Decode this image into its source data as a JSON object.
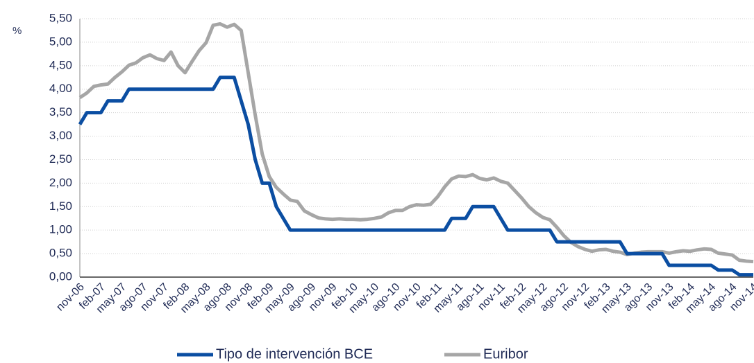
{
  "chart_data": {
    "type": "line",
    "ylabel": "%",
    "categories": [
      "nov-06",
      null,
      null,
      "feb-07",
      null,
      null,
      "may-07",
      null,
      null,
      "ago-07",
      null,
      null,
      "nov-07",
      null,
      null,
      "feb-08",
      null,
      null,
      "may-08",
      null,
      null,
      "ago-08",
      null,
      null,
      "nov-08",
      null,
      null,
      "feb-09",
      null,
      null,
      "may-09",
      null,
      null,
      "ago-09",
      null,
      null,
      "nov-09",
      null,
      null,
      "feb-10",
      null,
      null,
      "may-10",
      null,
      null,
      "ago-10",
      null,
      null,
      "nov-10",
      null,
      null,
      "feb-11",
      null,
      null,
      "may-11",
      null,
      null,
      "ago-11",
      null,
      null,
      "nov-11",
      null,
      null,
      "feb-12",
      null,
      null,
      "may-12",
      null,
      null,
      "ago-12",
      null,
      null,
      "nov-12",
      null,
      null,
      "feb-13",
      null,
      null,
      "may-13",
      null,
      null,
      "ago-13",
      null,
      null,
      "nov-13",
      null,
      null,
      "feb-14",
      null,
      null,
      "may-14",
      null,
      null,
      "ago-14",
      null,
      null,
      "nov-14"
    ],
    "series": [
      {
        "name": "Tipo de intervención BCE",
        "color": "#0b4ea2",
        "values": [
          3.25,
          3.5,
          3.5,
          3.5,
          3.75,
          3.75,
          3.75,
          4,
          4,
          4,
          4,
          4,
          4,
          4,
          4,
          4,
          4,
          4,
          4,
          4,
          4.25,
          4.25,
          4.25,
          3.75,
          3.25,
          2.5,
          2,
          2,
          1.5,
          1.25,
          1,
          1,
          1,
          1,
          1,
          1,
          1,
          1,
          1,
          1,
          1,
          1,
          1,
          1,
          1,
          1,
          1,
          1,
          1,
          1,
          1,
          1,
          1,
          1.25,
          1.25,
          1.25,
          1.5,
          1.5,
          1.5,
          1.5,
          1.25,
          1,
          1,
          1,
          1,
          1,
          1,
          1,
          0.75,
          0.75,
          0.75,
          0.75,
          0.75,
          0.75,
          0.75,
          0.75,
          0.75,
          0.75,
          0.5,
          0.5,
          0.5,
          0.5,
          0.5,
          0.5,
          0.25,
          0.25,
          0.25,
          0.25,
          0.25,
          0.25,
          0.25,
          0.15,
          0.15,
          0.15,
          0.05,
          0.05,
          0.05
        ]
      },
      {
        "name": "Euribor",
        "color": "#a6a6a6",
        "values": [
          3.82,
          3.92,
          4.06,
          4.09,
          4.11,
          4.25,
          4.37,
          4.51,
          4.56,
          4.67,
          4.73,
          4.65,
          4.61,
          4.79,
          4.5,
          4.35,
          4.59,
          4.82,
          4.99,
          5.36,
          5.39,
          5.32,
          5.38,
          5.25,
          4.35,
          3.45,
          2.62,
          2.14,
          1.91,
          1.77,
          1.64,
          1.61,
          1.41,
          1.33,
          1.26,
          1.24,
          1.23,
          1.24,
          1.23,
          1.23,
          1.22,
          1.23,
          1.25,
          1.28,
          1.37,
          1.42,
          1.42,
          1.5,
          1.54,
          1.53,
          1.55,
          1.71,
          1.92,
          2.09,
          2.15,
          2.14,
          2.18,
          2.1,
          2.07,
          2.11,
          2.04,
          2.0,
          1.84,
          1.68,
          1.5,
          1.37,
          1.27,
          1.22,
          1.06,
          0.88,
          0.74,
          0.65,
          0.59,
          0.55,
          0.58,
          0.59,
          0.55,
          0.53,
          0.48,
          0.51,
          0.53,
          0.54,
          0.54,
          0.54,
          0.51,
          0.54,
          0.56,
          0.55,
          0.58,
          0.6,
          0.59,
          0.51,
          0.49,
          0.47,
          0.36,
          0.34,
          0.33
        ]
      }
    ],
    "ylim": [
      0,
      5.5
    ],
    "yticks": [
      {
        "value": 0,
        "label": "0,00"
      },
      {
        "value": 0.5,
        "label": "0,50"
      },
      {
        "value": 1,
        "label": "1,00"
      },
      {
        "value": 1.5,
        "label": "1,50"
      },
      {
        "value": 2,
        "label": "2,00"
      },
      {
        "value": 2.5,
        "label": "2,50"
      },
      {
        "value": 3,
        "label": "3,00"
      },
      {
        "value": 3.5,
        "label": "3,50"
      },
      {
        "value": 4,
        "label": "4,00"
      },
      {
        "value": 4.5,
        "label": "4,50"
      },
      {
        "value": 5,
        "label": "5,00"
      },
      {
        "value": 5.5,
        "label": "5,50"
      }
    ],
    "grid": true,
    "legend": "bottom"
  }
}
